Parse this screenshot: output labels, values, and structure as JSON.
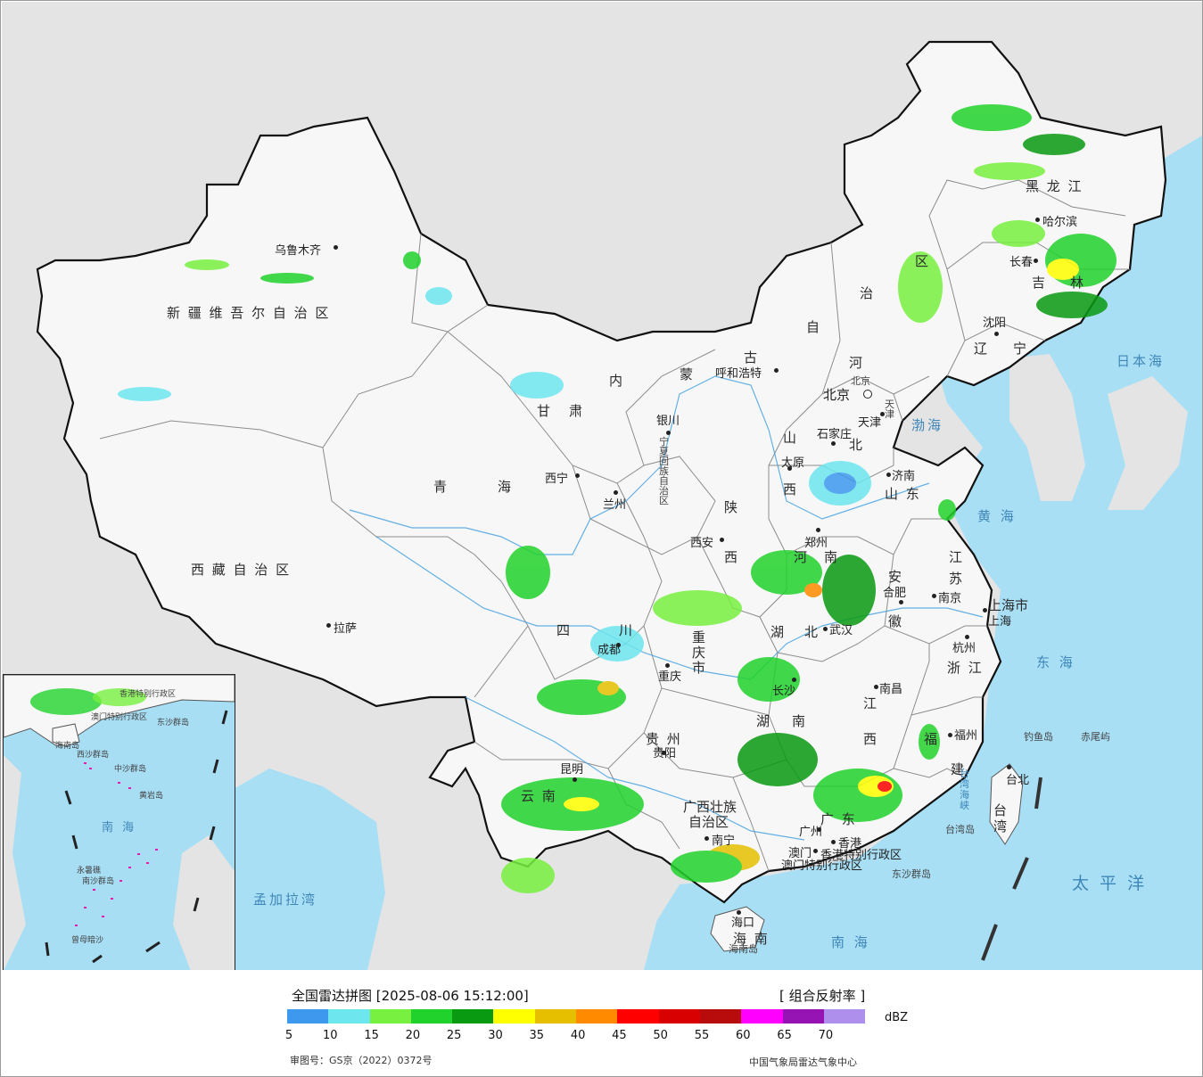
{
  "colors": {
    "sea": "#a8dff5",
    "land_outside": "#e4e4e4",
    "china_land": "#f7f7f7",
    "border": "#111111",
    "province_border": "#8c8c8c",
    "river": "#3f9ee0"
  },
  "legend": {
    "title": "全国雷达拼图 [2025-08-06 15:12:00]",
    "product": "[ 组合反射率 ]",
    "unit": "dBZ",
    "ticks": [
      "5",
      "10",
      "15",
      "20",
      "25",
      "30",
      "35",
      "40",
      "45",
      "50",
      "55",
      "60",
      "65",
      "70"
    ],
    "colors": [
      "#3d98ee",
      "#6de6ee",
      "#78f040",
      "#22d22c",
      "#0a9a12",
      "#ffff00",
      "#e6c000",
      "#ff8a00",
      "#ff0000",
      "#d80000",
      "#b80c0c",
      "#ff00ff",
      "#9614b4",
      "#ae90ec"
    ],
    "approval_number": "审图号：GS京（2022）0372号",
    "agency": "中国气象局雷达气象中心"
  },
  "provinces": {
    "xinjiang": "新 疆 维 吾 尔 自 治 区",
    "tibet": "西 藏 自 治 区",
    "qinghai_a": "青",
    "qinghai_b": "海",
    "gansu_a": "甘",
    "gansu_b": "肃",
    "neimenggu_1": "内",
    "neimenggu_2": "蒙",
    "neimenggu_3": "古",
    "neimenggu_4": "自",
    "neimenggu_5": "治",
    "neimenggu_6": "区",
    "heilongjiang": "黑 龙 江",
    "jilin_a": "吉",
    "jilin_b": "林",
    "liaoning_a": "辽",
    "liaoning_b": "宁",
    "hebei_a": "河",
    "hebei_b": "北",
    "shanxi_a": "山",
    "shanxi_b": "西",
    "shandong": "山 东",
    "shaanxi_a": "陕",
    "shaanxi_b": "西",
    "ningxia": "宁夏回族自治区",
    "henan_a": "河",
    "henan_b": "南",
    "sichuan_a": "四",
    "sichuan_b": "川",
    "chongqing": "重 庆 市",
    "hubei_a": "湖",
    "hubei_b": "北",
    "anhui_a": "安",
    "anhui_b": "徽",
    "jiangsu_a": "江",
    "jiangsu_b": "苏",
    "shanghai": "上海市",
    "zhejiang": "浙 江",
    "hunan_a": "湖",
    "hunan_b": "南",
    "jiangxi_a": "江",
    "jiangxi_b": "西",
    "fujian_a": "福",
    "fujian_b": "建",
    "guizhou": "贵 州",
    "yunnan": "云 南",
    "guangxi_a": "广西壮族",
    "guangxi_b": "自治区",
    "guangdong": "广 东",
    "hainan": "海 南",
    "taiwan": "台湾",
    "hongkong": "香港特别行政区",
    "macau": "澳门特别行政区",
    "tianjin": "天津",
    "beijing": "北京"
  },
  "cities": {
    "urumqi": "乌鲁木齐",
    "lhasa": "拉萨",
    "xining": "西宁",
    "lanzhou": "兰州",
    "yinchuan": "银川",
    "hohhot": "呼和浩特",
    "beijing": "北京",
    "tianjin": "天津",
    "shijiazhuang": "石家庄",
    "taiyuan": "太原",
    "jinan": "济南",
    "zhengzhou": "郑州",
    "xian": "西安",
    "harbin": "哈尔滨",
    "changchun": "长春",
    "shenyang": "沈阳",
    "hefei": "合肥",
    "nanjing": "南京",
    "shanghai": "上海",
    "hangzhou": "杭州",
    "wuhan": "武汉",
    "chengdu": "成都",
    "chongqing": "重庆",
    "changsha": "长沙",
    "nanchang": "南昌",
    "fuzhou": "福州",
    "guiyang": "贵阳",
    "kunming": "昆明",
    "nanning": "南宁",
    "guangzhou": "广州",
    "hongkong": "香港",
    "macau": "澳门",
    "haikou": "海口",
    "taipei": "台北"
  },
  "seas": {
    "bohai": "渤海",
    "huanghai": "黄 海",
    "donghai": "东 海",
    "nanhai": "南 海",
    "riben": "日本海",
    "taipingyang": "太 平 洋",
    "mengjiala": "孟加拉湾",
    "taiwan_strait": "台湾海峡"
  },
  "islands": {
    "diaoyu": "钓鱼岛",
    "chiwei": "赤尾屿",
    "taiwan_island": "台湾岛",
    "hainan_island": "海南岛",
    "dongsha": "东沙群岛"
  },
  "inset": {
    "nanhai": "南 海",
    "xisha": "西沙群岛",
    "zhongsha": "中沙群岛",
    "nansha": "南沙群岛",
    "dongsha": "东沙群岛",
    "huangyan": "黄岩岛",
    "yongshu": "永暑礁",
    "zengmu": "曾母暗沙",
    "hainan_isl": "海南岛",
    "hk": "香港特别行政区",
    "macau": "澳门特别行政区"
  }
}
